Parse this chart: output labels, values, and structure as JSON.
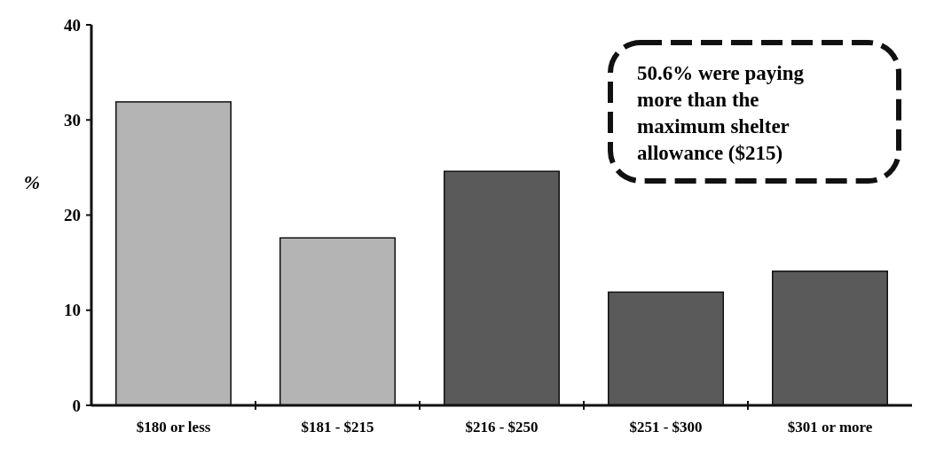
{
  "chart_data": {
    "type": "bar",
    "ylabel": "%",
    "categories": [
      "$180 or less",
      "$181 - $215",
      "$216 - $250",
      "$251 - $300",
      "$301 or more"
    ],
    "values": [
      31.9,
      17.6,
      24.6,
      11.9,
      14.1
    ],
    "colors": [
      "#b4b4b4",
      "#b4b4b4",
      "#5a5a5a",
      "#5a5a5a",
      "#5a5a5a"
    ],
    "ylim": [
      0,
      40
    ],
    "yticks": [
      0,
      10,
      20,
      30,
      40
    ],
    "grid": false,
    "annotations": [
      "50.6% were paying more than the maximum shelter allowance ($215)"
    ]
  }
}
